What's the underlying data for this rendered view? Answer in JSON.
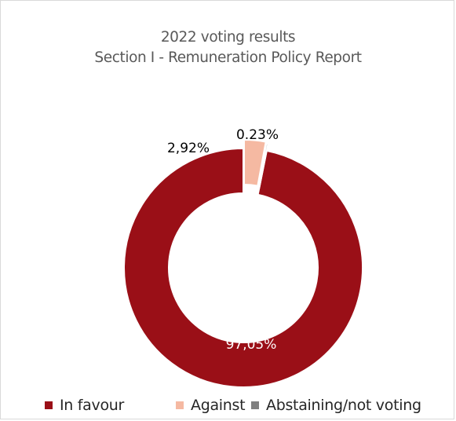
{
  "chart_data": {
    "type": "donut",
    "title_line1": "2022 voting results",
    "title_line2": "Section I - Remuneration Policy Report",
    "slices": [
      {
        "name": "In favour",
        "value": 97.05,
        "label": "97,05%",
        "color": "#9a0f17"
      },
      {
        "name": "Against",
        "value": 2.92,
        "label": "2,92%",
        "color": "#f5b9a2"
      },
      {
        "name": "Abstaining/not voting",
        "value": 0.23,
        "label": "0.23%",
        "color": "#808080"
      }
    ],
    "legend_position": "bottom"
  }
}
